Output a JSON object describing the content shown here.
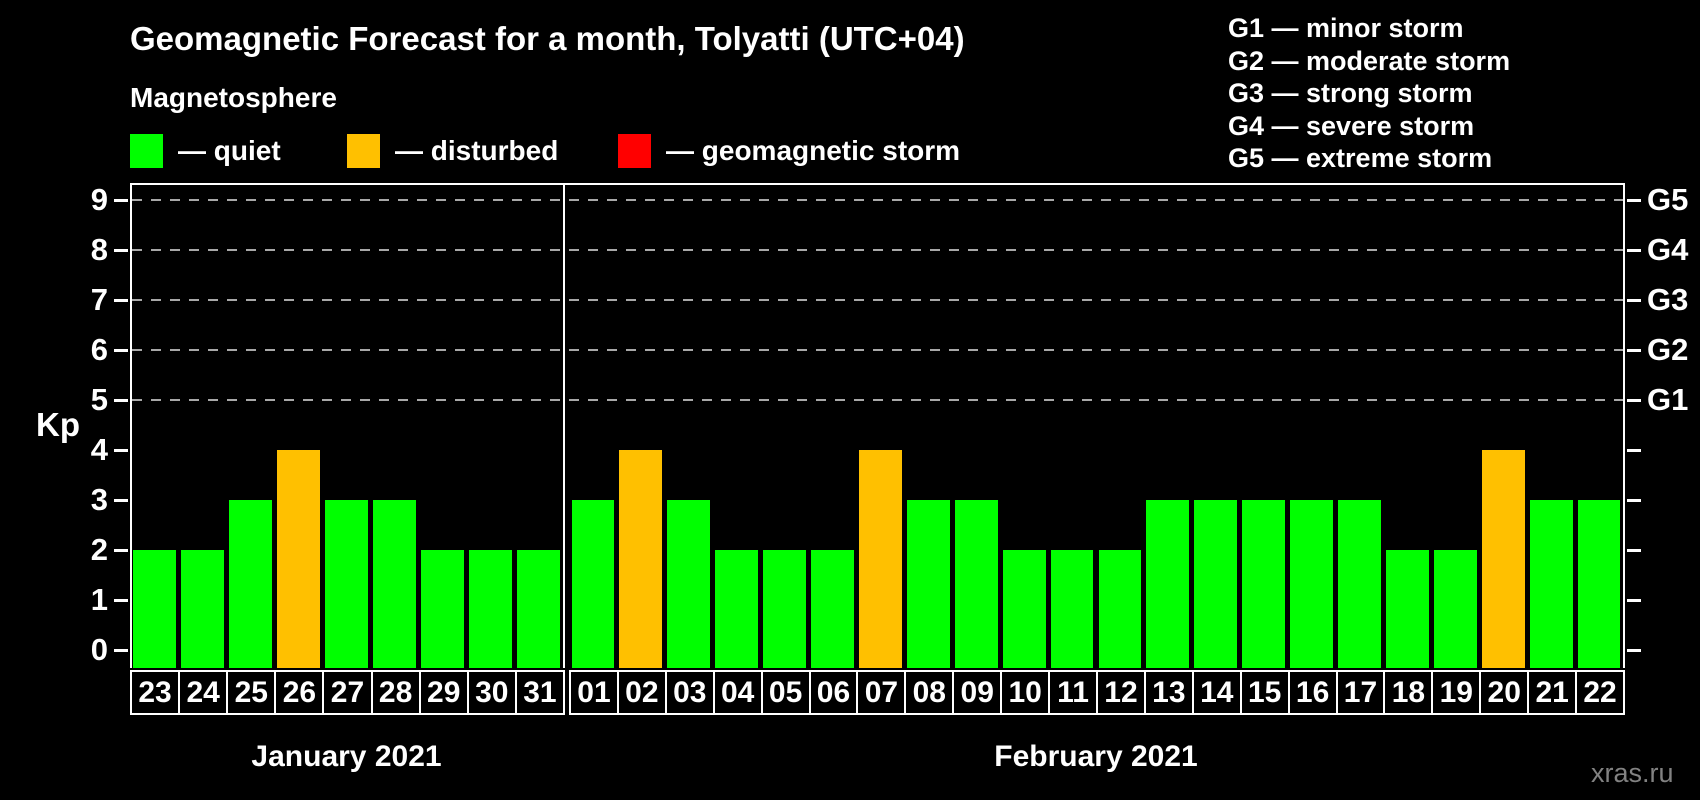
{
  "title": "Geomagnetic Forecast for a month, Tolyatti (UTC+04)",
  "watermark": "xras.ru",
  "magnetosphere_legend": {
    "heading": "Magnetosphere",
    "items": [
      {
        "name": "quiet",
        "label": "— quiet",
        "color": "#00ff00"
      },
      {
        "name": "disturbed",
        "label": "— disturbed",
        "color": "#ffc000"
      },
      {
        "name": "storm",
        "label": "— geomagnetic storm",
        "color": "#ff0000"
      }
    ]
  },
  "g_scale_legend": {
    "lines": [
      "G1 — minor storm",
      "G2 — moderate storm",
      "G3 — strong storm",
      "G4 — severe storm",
      "G5 — extreme storm"
    ]
  },
  "chart_data": {
    "type": "bar",
    "ylabel": "Kp",
    "y_ticks": [
      0,
      1,
      2,
      3,
      4,
      5,
      6,
      7,
      8,
      9
    ],
    "ylim": [
      0,
      9.3
    ],
    "grid": "dashed horizontal gridlines at storm levels only",
    "gridline_levels": [
      5,
      6,
      7,
      8,
      9
    ],
    "right_axis": [
      {
        "label": "G1",
        "kp": 5
      },
      {
        "label": "G2",
        "kp": 6
      },
      {
        "label": "G3",
        "kp": 7
      },
      {
        "label": "G4",
        "kp": 8
      },
      {
        "label": "G5",
        "kp": 9
      }
    ],
    "bar_colors": {
      "quiet": "#00ff00",
      "disturbed": "#ffc000",
      "storm": "#ff0000"
    },
    "groups": [
      {
        "month": "January 2021",
        "days": [
          "23",
          "24",
          "25",
          "26",
          "27",
          "28",
          "29",
          "30",
          "31"
        ],
        "kp": [
          2,
          2,
          3,
          4,
          3,
          3,
          2,
          2,
          2
        ],
        "state": [
          "quiet",
          "quiet",
          "quiet",
          "disturbed",
          "quiet",
          "quiet",
          "quiet",
          "quiet",
          "quiet"
        ]
      },
      {
        "month": "February 2021",
        "days": [
          "01",
          "02",
          "03",
          "04",
          "05",
          "06",
          "07",
          "08",
          "09",
          "10",
          "11",
          "12",
          "13",
          "14",
          "15",
          "16",
          "17",
          "18",
          "19",
          "20",
          "21",
          "22"
        ],
        "kp": [
          3,
          4,
          3,
          2,
          2,
          2,
          4,
          3,
          3,
          2,
          2,
          2,
          3,
          3,
          3,
          3,
          3,
          2,
          2,
          4,
          3,
          3
        ],
        "state": [
          "quiet",
          "disturbed",
          "quiet",
          "quiet",
          "quiet",
          "quiet",
          "disturbed",
          "quiet",
          "quiet",
          "quiet",
          "quiet",
          "quiet",
          "quiet",
          "quiet",
          "quiet",
          "quiet",
          "quiet",
          "quiet",
          "quiet",
          "disturbed",
          "quiet",
          "quiet"
        ]
      }
    ]
  }
}
